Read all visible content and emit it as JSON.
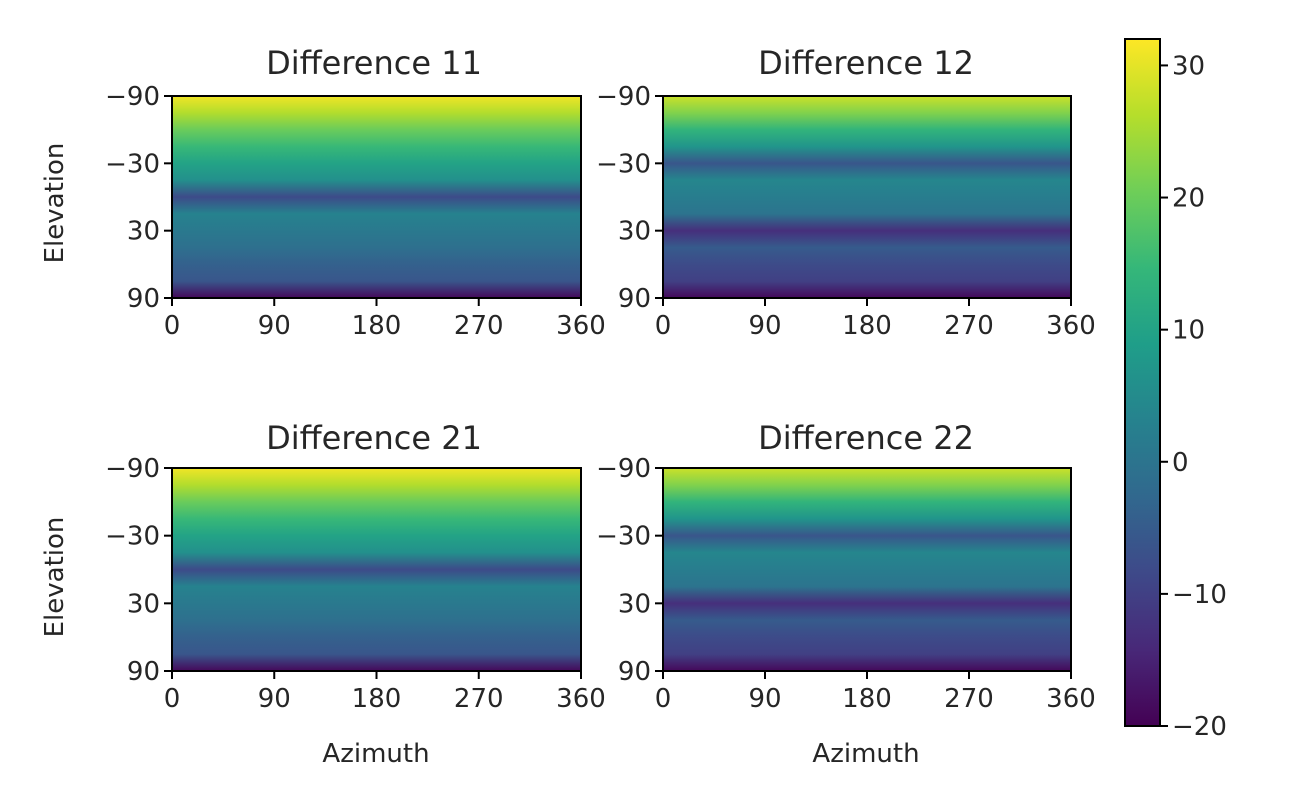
{
  "chart_data": {
    "type": "heatmap",
    "colormap": "viridis",
    "colormap_stops": [
      "#440154",
      "#482878",
      "#3e4989",
      "#31688e",
      "#26828e",
      "#1f9e89",
      "#35b779",
      "#6ece58",
      "#b5de2b",
      "#fde725"
    ],
    "clim": [
      -20,
      32
    ],
    "colorbar": {
      "ticks": [
        -20,
        -10,
        0,
        10,
        20,
        30
      ],
      "tick_labels": [
        "−20",
        "−10",
        "0",
        "10",
        "20",
        "30"
      ]
    },
    "x_ticks": [
      0,
      90,
      180,
      270,
      360
    ],
    "x_tick_labels": [
      "0",
      "90",
      "180",
      "270",
      "360"
    ],
    "y_ticks": [
      -90,
      -30,
      30,
      90
    ],
    "y_tick_labels": [
      "−90",
      "−30",
      "30",
      "90"
    ],
    "xlim": [
      0,
      360
    ],
    "ylim": [
      -90,
      90
    ],
    "elevation_profile": [
      -90,
      -75,
      -60,
      -45,
      -30,
      -15,
      0,
      15,
      30,
      45,
      60,
      75,
      90
    ],
    "panels": [
      {
        "title": "Difference 11",
        "xlabel": "",
        "ylabel": "Elevation",
        "values_by_elevation": [
          31,
          26,
          20,
          15,
          10,
          6,
          -8,
          3,
          1,
          -1,
          -4,
          -6,
          -19
        ]
      },
      {
        "title": "Difference 12",
        "xlabel": "",
        "ylabel": "",
        "values_by_elevation": [
          28,
          22,
          14,
          7,
          -6,
          4,
          2,
          0,
          -13,
          -5,
          -8,
          -10,
          -19
        ]
      },
      {
        "title": "Difference 21",
        "xlabel": "Azimuth",
        "ylabel": "Elevation",
        "values_by_elevation": [
          31,
          26,
          20,
          15,
          10,
          6,
          -8,
          3,
          1,
          -1,
          -4,
          -6,
          -19
        ]
      },
      {
        "title": "Difference 22",
        "xlabel": "Azimuth",
        "ylabel": "",
        "values_by_elevation": [
          28,
          22,
          14,
          7,
          -6,
          4,
          2,
          0,
          -13,
          -5,
          -8,
          -10,
          -19
        ]
      }
    ]
  }
}
